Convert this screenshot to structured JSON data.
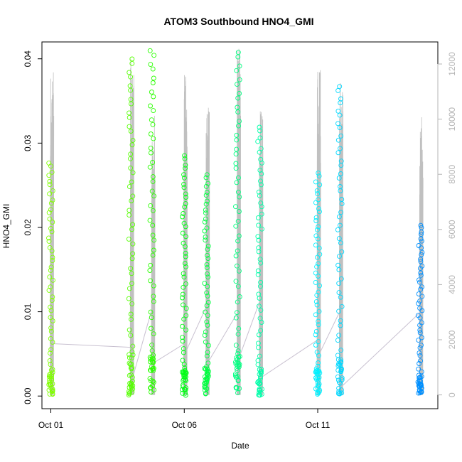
{
  "chart_data": {
    "type": "scatter",
    "title": "ATOM3 Southbound HNO4_GMI",
    "xlabel": "Date",
    "ylabel": "HNO4_GMI",
    "y2label": "",
    "xlim": [
      "2017-09-30T16:00",
      "2017-10-15T12:00"
    ],
    "ylim": [
      -0.0015,
      0.042
    ],
    "y2lim": [
      -500,
      12800
    ],
    "x_ticks": [
      {
        "value": "2017-10-01",
        "label": "Oct 01"
      },
      {
        "value": "2017-10-06",
        "label": "Oct 06"
      },
      {
        "value": "2017-10-11",
        "label": "Oct 11"
      }
    ],
    "y_ticks": [
      "0.00",
      "0.01",
      "0.02",
      "0.03",
      "0.04"
    ],
    "y2_ticks": [
      "0",
      "2000",
      "4000",
      "6000",
      "8000",
      "10000",
      "12000"
    ],
    "grid": false,
    "legend": "none",
    "colors": {
      "altitude_line": "#c0c0c0",
      "connector_line": "#c8c0d0",
      "axis": "#000000",
      "right_axis": "#b5b5b5"
    },
    "flights": [
      {
        "date": "2017-10-01",
        "color": "#80ff00",
        "hno4_range": [
          0.0002,
          0.028
        ],
        "alt_peak": 11900
      },
      {
        "date": "2017-10-04",
        "color": "#55ff00",
        "hno4_range": [
          0.0001,
          0.0405
        ],
        "alt_peak": 12300
      },
      {
        "date": "2017-10-04T19:00",
        "color": "#2aff00",
        "hno4_range": [
          0.0001,
          0.0415
        ],
        "alt_peak": 10400
      },
      {
        "date": "2017-10-06",
        "color": "#00ff15",
        "hno4_range": [
          0.0001,
          0.0289
        ],
        "alt_peak": 11700
      },
      {
        "date": "2017-10-06T20:00",
        "color": "#00ff40",
        "hno4_range": [
          0.0001,
          0.0266
        ],
        "alt_peak": 10600
      },
      {
        "date": "2017-10-08",
        "color": "#00ff80",
        "hno4_range": [
          0.0001,
          0.0413
        ],
        "alt_peak": 12600
      },
      {
        "date": "2017-10-08T20:00",
        "color": "#00ffaa",
        "hno4_range": [
          0.0001,
          0.0323
        ],
        "alt_peak": 10300
      },
      {
        "date": "2017-10-11",
        "color": "#00f0ff",
        "hno4_range": [
          0.0001,
          0.0268
        ],
        "alt_peak": 11800
      },
      {
        "date": "2017-10-11T20:00",
        "color": "#00d8ff",
        "hno4_range": [
          0.0001,
          0.0372
        ],
        "alt_peak": 11600
      },
      {
        "date": "2017-10-14T20:00",
        "color": "#0090ff",
        "hno4_range": [
          0.0003,
          0.0205
        ],
        "alt_peak": 10200
      }
    ]
  }
}
